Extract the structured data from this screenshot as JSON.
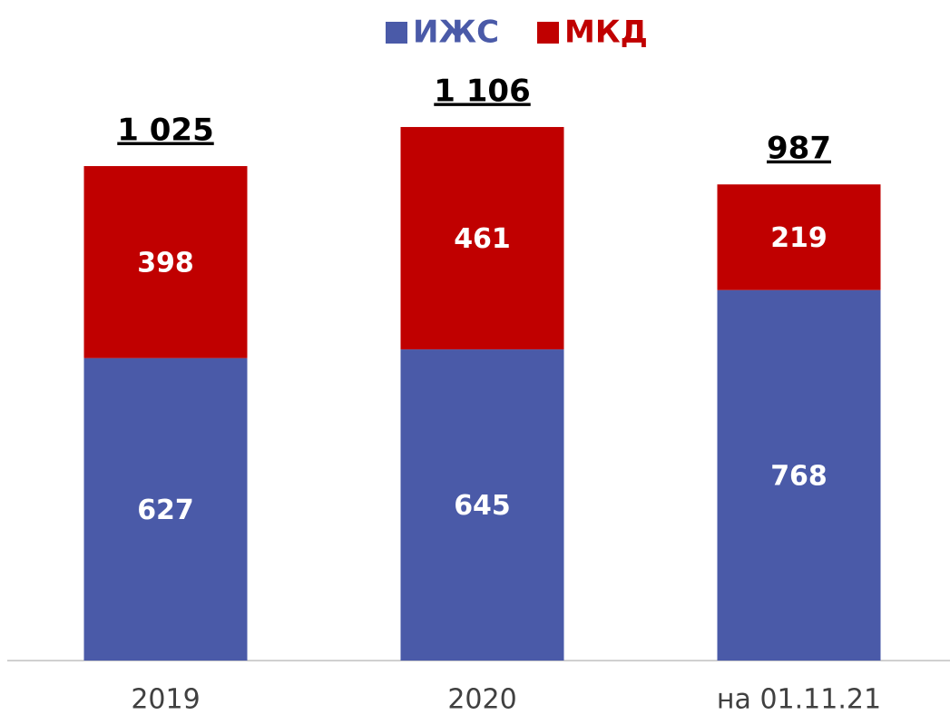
{
  "chart_data": {
    "type": "stacked_bar",
    "categories": [
      "2019",
      "2020",
      "на 01.11.21"
    ],
    "series": [
      {
        "name": "ИЖС",
        "color": "#4a5aa8",
        "values": [
          627,
          645,
          768
        ]
      },
      {
        "name": "МКД",
        "color": "#c00000",
        "values": [
          398,
          461,
          219
        ]
      }
    ],
    "totals": [
      1025,
      1106,
      987
    ],
    "total_labels": [
      "1 025",
      "1 106",
      "987"
    ],
    "ylim": [
      0,
      1200
    ],
    "grid": false,
    "legend": "top"
  }
}
